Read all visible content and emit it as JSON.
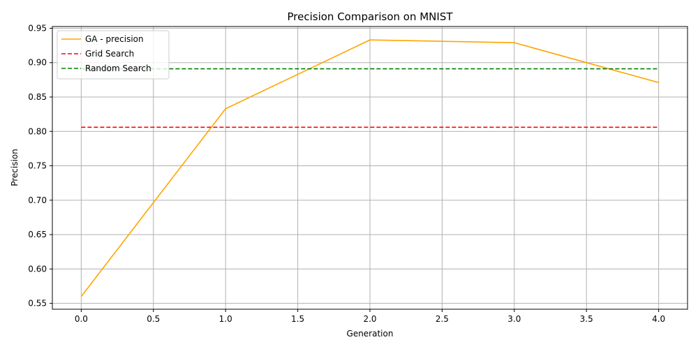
{
  "chart_data": {
    "type": "line",
    "title": "Precision Comparison on MNIST",
    "xlabel": "Generation",
    "ylabel": "Precision",
    "xlim": [
      -0.2,
      4.2
    ],
    "ylim": [
      0.5415,
      0.9525
    ],
    "x_ticks": [
      0.0,
      0.5,
      1.0,
      1.5,
      2.0,
      2.5,
      3.0,
      3.5,
      4.0
    ],
    "x_tick_labels": [
      "0.0",
      "0.5",
      "1.0",
      "1.5",
      "2.0",
      "2.5",
      "3.0",
      "3.5",
      "4.0"
    ],
    "y_ticks": [
      0.55,
      0.6,
      0.65,
      0.7,
      0.75,
      0.8,
      0.85,
      0.9,
      0.95
    ],
    "y_tick_labels": [
      "0.55",
      "0.60",
      "0.65",
      "0.70",
      "0.75",
      "0.80",
      "0.85",
      "0.90",
      "0.95"
    ],
    "grid": true,
    "legend_position": "top-left",
    "series": [
      {
        "name": "GA - precision",
        "color": "#ffa500",
        "style": "solid",
        "x": [
          0,
          1,
          2,
          3,
          4
        ],
        "values": [
          0.56,
          0.833,
          0.933,
          0.929,
          0.871
        ]
      },
      {
        "name": "Grid Search",
        "color": "#ff0000",
        "style": "dashed",
        "x": [
          0,
          4
        ],
        "values": [
          0.806,
          0.806
        ]
      },
      {
        "name": "Random Search",
        "color": "#008000",
        "style": "dashed",
        "x": [
          0,
          4
        ],
        "values": [
          0.891,
          0.891
        ]
      }
    ]
  }
}
